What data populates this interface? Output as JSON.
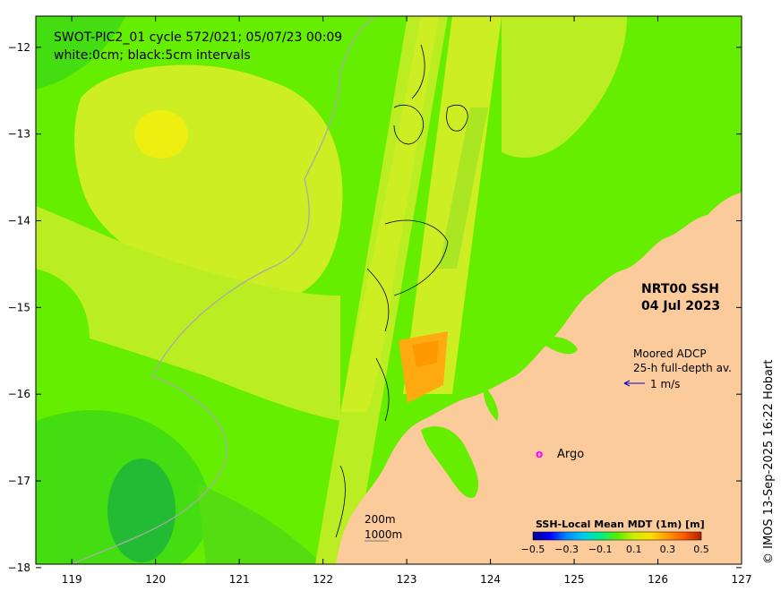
{
  "map": {
    "title_line1": "SWOT-PIC2_01 cycle 572/021; 05/07/23 00:09",
    "title_line2": "white:0cm; black:5cm intervals",
    "product_line1": "NRT00 SSH",
    "product_line2": "04 Jul 2023",
    "adcp_line1": "Moored ADCP",
    "adcp_line2": "25-h full-depth av.",
    "adcp_scale_label": "1 m/s",
    "argo_symbol": "o",
    "argo_label": "Argo",
    "bathy_label_1": "200m",
    "bathy_label_2": "1000m",
    "colorbar_title": "SSH-Local Mean MDT (1m) [m]",
    "colorbar_ticks": [
      "-0.5",
      "-0.3",
      "-0.1",
      "0.1",
      "0.3",
      "0.5"
    ],
    "credit": "© IMOS 13-Sep-2025 16:22 Hobart",
    "x_ticks": [
      "119",
      "120",
      "121",
      "122",
      "123",
      "124",
      "125",
      "126",
      "127"
    ],
    "y_ticks": [
      "-12",
      "-13",
      "-14",
      "-15",
      "-16",
      "-17",
      "-18"
    ]
  },
  "colors": {
    "land": "#fccb9b",
    "bright_green": "#66ee00",
    "mid_green": "#44dd11",
    "dark_green": "#22bb33",
    "yellow_green": "#ccee22",
    "yellow": "#eeee11",
    "orange": "#ffaa11",
    "argo": "#ff00ff",
    "arrow": "#0000cc"
  },
  "colorbar_colors": [
    "#000088",
    "#0000ff",
    "#0088ff",
    "#00ccee",
    "#00ee88",
    "#55ee00",
    "#ccee00",
    "#ffdd00",
    "#ff9900",
    "#ff5500",
    "#aa2200"
  ]
}
